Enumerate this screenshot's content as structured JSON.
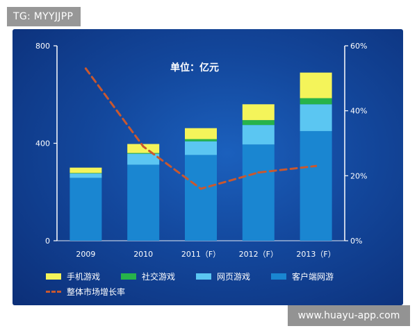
{
  "watermarks": {
    "top_left": "TG: MYYJJPP",
    "bottom_right": "www.huayu-app.com"
  },
  "colors": {
    "mobile": "#f4f45a",
    "social": "#27b34a",
    "web": "#5bc6f2",
    "client": "#1a86d1",
    "growth_line": "#c9582f"
  },
  "chart_data": {
    "type": "bar",
    "stacked": true,
    "title": "单位：亿元",
    "categories": [
      "2009",
      "2010",
      "2011（F）",
      "2012（F）",
      "2013（F）"
    ],
    "series": [
      {
        "name": "客户端网游",
        "color_key": "client",
        "values": [
          258,
          312,
          352,
          395,
          450
        ]
      },
      {
        "name": "网页游戏",
        "color_key": "web",
        "values": [
          18,
          45,
          56,
          80,
          110
        ]
      },
      {
        "name": "社交游戏",
        "color_key": "social",
        "values": [
          2,
          3,
          9,
          20,
          25
        ]
      },
      {
        "name": "手机游戏",
        "color_key": "mobile",
        "values": [
          22,
          37,
          45,
          65,
          105
        ]
      }
    ],
    "line_series": {
      "name": "整体市场增长率",
      "axis": "right",
      "values": [
        53,
        29,
        16,
        21,
        23
      ],
      "unit": "%"
    },
    "y_left": {
      "ticks": [
        "0",
        "400",
        "800"
      ],
      "ylim": [
        0,
        800
      ]
    },
    "y_right": {
      "ticks": [
        "0%",
        "20%",
        "40%",
        "60%"
      ],
      "ylim": [
        0,
        60
      ]
    },
    "legend": {
      "placement": "bottom",
      "rows": [
        [
          "手机游戏",
          "社交游戏",
          "网页游戏",
          "客户端网游"
        ],
        [
          "整体市场增长率"
        ]
      ]
    }
  }
}
